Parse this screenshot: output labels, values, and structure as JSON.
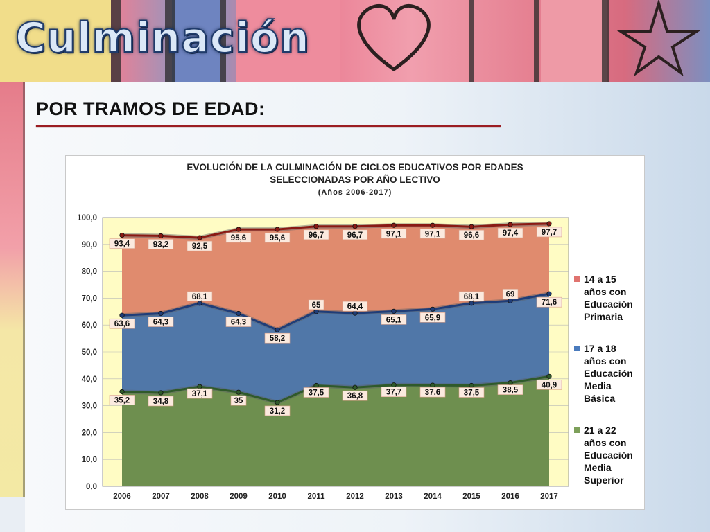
{
  "header": {
    "title": "Culminación"
  },
  "section": {
    "subtitle": "POR TRAMOS DE EDAD:"
  },
  "chart_data": {
    "type": "area",
    "title_line1": "EVOLUCIÓN DE LA CULMINACIÓN DE CICLOS EDUCATIVOS POR EDADES",
    "title_line2": "SELECCIONADAS POR AÑO LECTIVO",
    "subtitle": "(Años 2006-2017)",
    "ylim": [
      0,
      100
    ],
    "yticks": [
      "0,0",
      "10,0",
      "20,0",
      "30,0",
      "40,0",
      "50,0",
      "60,0",
      "70,0",
      "80,0",
      "90,0",
      "100,0"
    ],
    "categories": [
      "2006",
      "2007",
      "2008",
      "2009",
      "2010",
      "2011",
      "2012",
      "2013",
      "2014",
      "2015",
      "2016",
      "2017"
    ],
    "legend_position": "right",
    "series": [
      {
        "name": "14 a 15 años con Educación Primaria",
        "color": "#e08b6e",
        "line": "#8a1a14",
        "values": [
          93.4,
          93.2,
          92.5,
          95.6,
          95.6,
          96.7,
          96.7,
          97.1,
          97.1,
          96.6,
          97.4,
          97.7
        ],
        "labels": [
          "93,4",
          "93,2",
          "92,5",
          "95,6",
          "95,6",
          "96,7",
          "96,7",
          "97,1",
          "97,1",
          "96,6",
          "97,4",
          "97,7"
        ]
      },
      {
        "name": "17 a 18 años con Educación Media Básica",
        "color": "#5077a8",
        "line": "#1f3d78",
        "values": [
          63.6,
          64.3,
          68.1,
          64.3,
          58.2,
          65,
          64.4,
          65.1,
          65.9,
          68.1,
          69,
          71.6
        ],
        "labels": [
          "63,6",
          "64,3",
          "68,1",
          "64,3",
          "58,2",
          "65",
          "64,4",
          "65,1",
          "65,9",
          "68,1",
          "69",
          "71,6"
        ]
      },
      {
        "name": "21 a 22 años con Educación Media Superior",
        "color": "#6e8f4f",
        "line": "#2f5a2a",
        "values": [
          35.2,
          34.8,
          37.1,
          35,
          31.2,
          37.5,
          36.8,
          37.7,
          37.6,
          37.5,
          38.5,
          40.9
        ],
        "labels": [
          "35,2",
          "34,8",
          "37,1",
          "35",
          "31,2",
          "37,5",
          "36,8",
          "37,7",
          "37,6",
          "37,5",
          "38,5",
          "40,9"
        ]
      }
    ],
    "legend_lines": [
      [
        "14 a 15",
        "años con",
        "Educación",
        "Primaria"
      ],
      [
        "17 a 18",
        "años con",
        "Educación",
        "Media",
        "Básica"
      ],
      [
        "21 a 22",
        "años con",
        "Educación",
        "Media",
        "Superior"
      ]
    ],
    "colors": {
      "plot_bg": "#fffcc4",
      "legend_sq_1": "#e0736f",
      "legend_sq_2": "#4a7bbd",
      "legend_sq_3": "#7da05a",
      "label_bg": "#fbeadf"
    }
  }
}
